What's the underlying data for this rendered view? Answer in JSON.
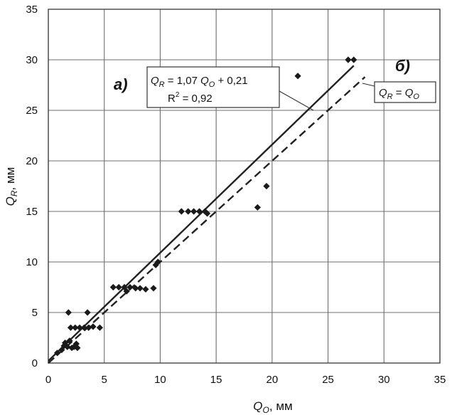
{
  "chart_data": {
    "type": "scatter",
    "xlabel": {
      "var": "Q",
      "sub": "O",
      "unit": ", мм"
    },
    "ylabel": {
      "var": "Q",
      "sub": "R",
      "unit": ", мм"
    },
    "xlim": [
      0,
      35
    ],
    "ylim": [
      0,
      35
    ],
    "xticks": [
      "0",
      "5",
      "10",
      "15",
      "20",
      "25",
      "30",
      "35"
    ],
    "yticks": [
      "0",
      "5",
      "10",
      "15",
      "20",
      "25",
      "30",
      "35"
    ],
    "grid": true,
    "panel_label_a": "a)",
    "panel_label_b": "б)",
    "regression": {
      "slope": 1.07,
      "intercept": 0.21,
      "x_range": [
        0,
        27.3
      ],
      "equation": {
        "lhs_var": "Q",
        "lhs_sub": "R",
        "eq": " = 1,07 ",
        "rhs_var": "Q",
        "rhs_sub": "O",
        "tail": " + 0,21"
      },
      "r2": {
        "prefix": "R",
        "sup": "2",
        "tail": " = 0,92"
      }
    },
    "identity": {
      "x_range": [
        0,
        28.3
      ],
      "label": {
        "lhs_var": "Q",
        "lhs_sub": "R",
        "eq": " = ",
        "rhs_var": "Q",
        "rhs_sub": "O"
      }
    },
    "points": [
      [
        0.8,
        1.0
      ],
      [
        1.2,
        1.3
      ],
      [
        1.4,
        1.7
      ],
      [
        1.5,
        2.0
      ],
      [
        1.7,
        1.6
      ],
      [
        1.9,
        2.2
      ],
      [
        2.1,
        1.5
      ],
      [
        2.3,
        1.6
      ],
      [
        2.5,
        1.9
      ],
      [
        2.6,
        1.5
      ],
      [
        1.8,
        5.0
      ],
      [
        3.5,
        5.0
      ],
      [
        2.0,
        3.5
      ],
      [
        2.4,
        3.5
      ],
      [
        2.8,
        3.5
      ],
      [
        3.2,
        3.5
      ],
      [
        3.6,
        3.5
      ],
      [
        4.0,
        3.6
      ],
      [
        4.6,
        3.5
      ],
      [
        5.8,
        7.5
      ],
      [
        6.3,
        7.5
      ],
      [
        6.8,
        7.5
      ],
      [
        7.3,
        7.5
      ],
      [
        7.8,
        7.4
      ],
      [
        8.2,
        7.4
      ],
      [
        8.7,
        7.3
      ],
      [
        9.4,
        7.4
      ],
      [
        7.0,
        7.1
      ],
      [
        9.6,
        9.7
      ],
      [
        9.8,
        10.0
      ],
      [
        11.9,
        15.0
      ],
      [
        12.5,
        15.0
      ],
      [
        13.0,
        15.0
      ],
      [
        13.5,
        15.0
      ],
      [
        14.0,
        15.0
      ],
      [
        14.2,
        14.8
      ],
      [
        18.7,
        15.4
      ],
      [
        19.5,
        17.5
      ],
      [
        22.3,
        28.4
      ],
      [
        26.8,
        30.0
      ],
      [
        27.3,
        30.0
      ]
    ]
  }
}
